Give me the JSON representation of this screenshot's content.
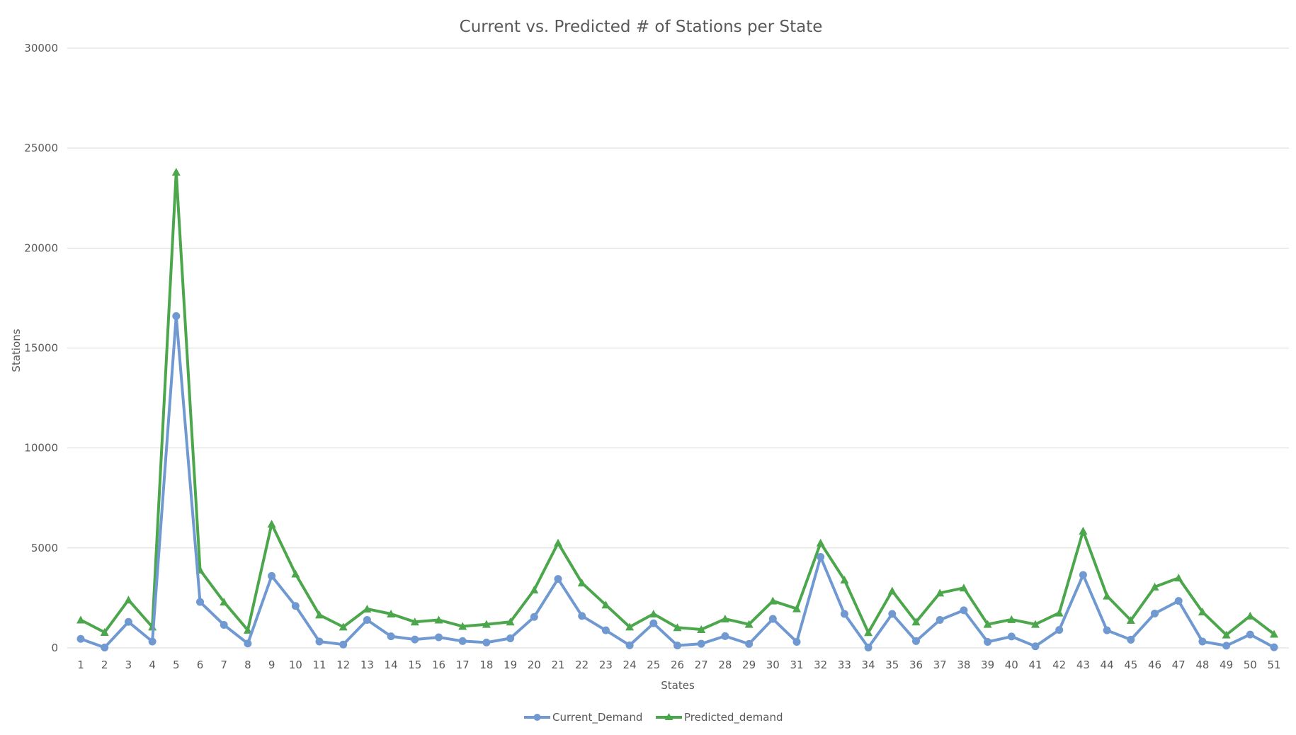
{
  "chart_data": {
    "type": "line",
    "title": "Current vs. Predicted # of Stations per State",
    "xlabel": "States",
    "ylabel": "Stations",
    "ylim": [
      0,
      30000
    ],
    "yticks": [
      0,
      5000,
      10000,
      15000,
      20000,
      25000,
      30000
    ],
    "grid": true,
    "legend": "bottom-center",
    "categories": [
      "1",
      "2",
      "3",
      "4",
      "5",
      "6",
      "7",
      "8",
      "9",
      "10",
      "11",
      "12",
      "13",
      "14",
      "15",
      "16",
      "17",
      "18",
      "19",
      "20",
      "21",
      "22",
      "23",
      "24",
      "25",
      "26",
      "27",
      "28",
      "29",
      "30",
      "31",
      "32",
      "33",
      "34",
      "35",
      "36",
      "37",
      "38",
      "39",
      "40",
      "41",
      "42",
      "43",
      "44",
      "45",
      "46",
      "47",
      "48",
      "49",
      "50",
      "51"
    ],
    "series": [
      {
        "name": "Current_Demand",
        "color": "#6f99d0",
        "marker": "circle",
        "values": [
          450,
          20,
          1300,
          320,
          16600,
          2300,
          1150,
          220,
          3600,
          2100,
          320,
          170,
          1400,
          580,
          420,
          530,
          340,
          270,
          480,
          1550,
          3450,
          1600,
          880,
          130,
          1230,
          120,
          210,
          590,
          200,
          1450,
          300,
          4550,
          1700,
          20,
          1700,
          340,
          1400,
          1880,
          300,
          570,
          80,
          900,
          3650,
          880,
          410,
          1720,
          2350,
          320,
          110,
          670,
          30
        ],
        "value_labels": []
      },
      {
        "name": "Predicted_demand",
        "color": "#4ca64c",
        "marker": "triangle",
        "values": [
          1400,
          780,
          2400,
          1050,
          23800,
          3900,
          2300,
          890,
          6200,
          3700,
          1650,
          1050,
          1950,
          1700,
          1300,
          1400,
          1080,
          1180,
          1300,
          2900,
          5250,
          3250,
          2150,
          1050,
          1700,
          1020,
          920,
          1450,
          1180,
          2350,
          1960,
          5250,
          3400,
          770,
          2850,
          1300,
          2750,
          3000,
          1180,
          1420,
          1180,
          1750,
          5850,
          2600,
          1380,
          3050,
          3500,
          1800,
          650,
          1600,
          690
        ],
        "value_labels": []
      }
    ]
  }
}
